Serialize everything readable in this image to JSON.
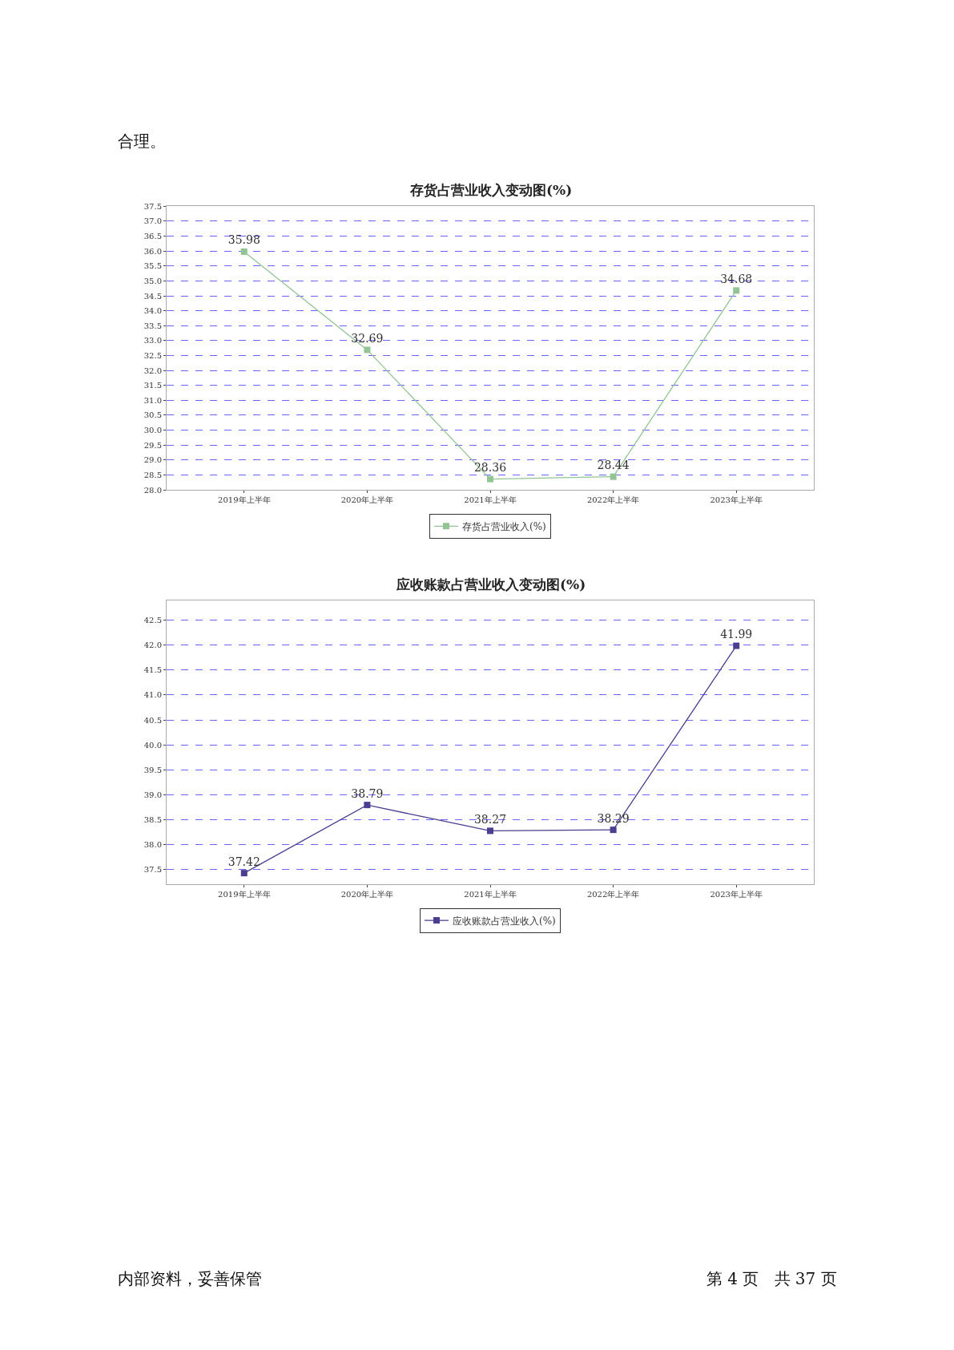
{
  "chart_data": [
    {
      "type": "line",
      "title": "存货占营业收入变动图(%)",
      "categories": [
        "2019年上半年",
        "2020年上半年",
        "2021年上半年",
        "2022年上半年",
        "2023年上半年"
      ],
      "series": [
        {
          "name": "存货占营业收入(%)",
          "color": "#93c493",
          "values": [
            35.98,
            32.69,
            28.36,
            28.44,
            34.68
          ]
        }
      ],
      "ylim": [
        28.0,
        37.5
      ],
      "yticks": [
        {
          "value": 28.0,
          "label": "28.0"
        },
        {
          "value": 28.5,
          "label": "28.5"
        },
        {
          "value": 29.0,
          "label": "29.0"
        },
        {
          "value": 29.5,
          "label": "29.5"
        },
        {
          "value": 30.0,
          "label": "30.0"
        },
        {
          "value": 30.5,
          "label": "30.5"
        },
        {
          "value": 31.0,
          "label": "31.0"
        },
        {
          "value": 31.5,
          "label": "31.5"
        },
        {
          "value": 32.0,
          "label": "32.0"
        },
        {
          "value": 32.5,
          "label": "32.5"
        },
        {
          "value": 33.0,
          "label": "33.0"
        },
        {
          "value": 33.5,
          "label": "33.5"
        },
        {
          "value": 34.0,
          "label": "34.0"
        },
        {
          "value": 34.5,
          "label": "34.5"
        },
        {
          "value": 35.0,
          "label": "35.0"
        },
        {
          "value": 35.5,
          "label": "35.5"
        },
        {
          "value": 36.0,
          "label": "36.0"
        },
        {
          "value": 36.5,
          "label": "36.5"
        },
        {
          "value": 37.0,
          "label": "37.0"
        },
        {
          "value": 37.5,
          "label": "37.5"
        }
      ],
      "grid": "y",
      "legend": "bottom",
      "marker": "square",
      "line_style": "solid",
      "data_labels": true,
      "annotations": [
        "合理。"
      ]
    },
    {
      "type": "line",
      "title": "应收账款占营业收入变动图(%)",
      "categories": [
        "2019年上半年",
        "2020年上半年",
        "2021年上半年",
        "2022年上半年",
        "2023年上半年"
      ],
      "series": [
        {
          "name": "应收账款占营业收入(%)",
          "color": "#4b3d8f",
          "values": [
            37.42,
            38.79,
            38.27,
            38.29,
            41.99
          ]
        }
      ],
      "ylim": [
        37.2,
        42.9
      ],
      "yticks": [
        {
          "value": 37.5,
          "label": "37.5"
        },
        {
          "value": 38.0,
          "label": "38.0"
        },
        {
          "value": 38.5,
          "label": "38.5"
        },
        {
          "value": 39.0,
          "label": "39.0"
        },
        {
          "value": 39.5,
          "label": "39.5"
        },
        {
          "value": 40.0,
          "label": "40.0"
        },
        {
          "value": 40.5,
          "label": "40.5"
        },
        {
          "value": 41.0,
          "label": "41.0"
        },
        {
          "value": 41.5,
          "label": "41.5"
        },
        {
          "value": 42.0,
          "label": "42.0"
        },
        {
          "value": 42.5,
          "label": "42.5"
        }
      ],
      "grid": "y",
      "legend": "bottom",
      "marker": "square",
      "line_style": "solid",
      "data_labels": true,
      "annotations": [
        "内部资料，妥善保管",
        "第 4 页   共 37 页"
      ]
    }
  ]
}
